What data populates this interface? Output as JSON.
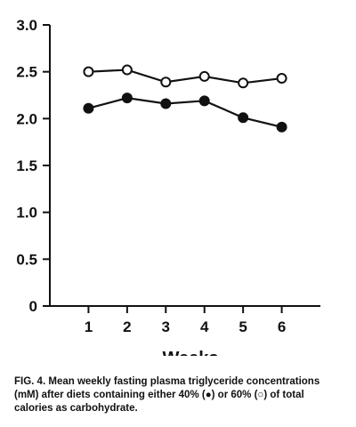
{
  "chart_data": {
    "type": "line",
    "title": "",
    "xlabel": "Weeks",
    "ylabel": "",
    "x": [
      1,
      2,
      3,
      4,
      5,
      6
    ],
    "xticks": [
      "1",
      "2",
      "3",
      "4",
      "5",
      "6"
    ],
    "yticks": [
      "0",
      "0.5",
      "1.0",
      "1.5",
      "2.0",
      "2.5",
      "3.0"
    ],
    "ylim": [
      0,
      3.0
    ],
    "xlim": [
      0,
      7
    ],
    "grid": false,
    "legend": "none",
    "series": [
      {
        "marker": "open-circle",
        "values": [
          2.5,
          2.52,
          2.39,
          2.45,
          2.38,
          2.43
        ]
      },
      {
        "marker": "filled-circle",
        "values": [
          2.11,
          2.22,
          2.16,
          2.19,
          2.01,
          1.91
        ]
      }
    ]
  },
  "caption": {
    "label": "FIG. 4.",
    "text": "Mean weekly fasting plasma triglyceride concentrations (mM) after diets containing either 40% (●) or 60% (○) of total calories as carbohydrate."
  }
}
